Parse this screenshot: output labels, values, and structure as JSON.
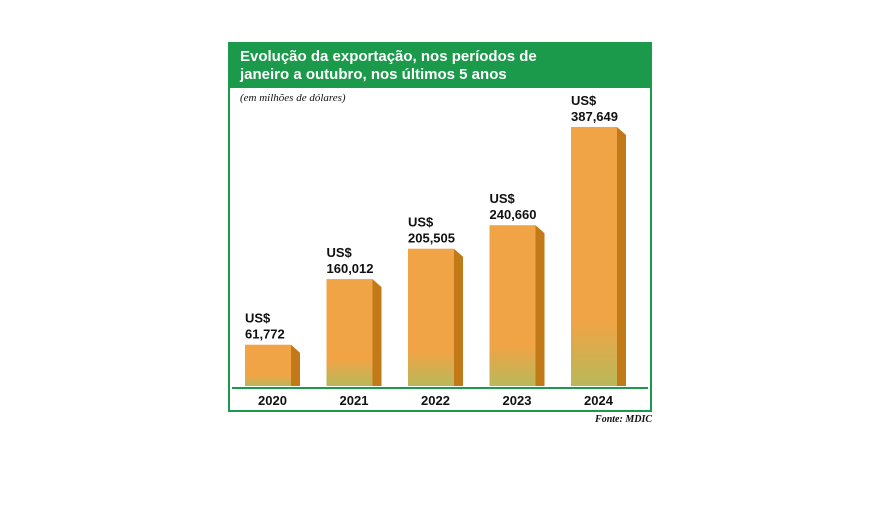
{
  "title": "Evolução da exportação, nos períodos de janeiro a outubro, nos últimos 5 anos",
  "title_line1": "Evolução da exportação, nos períodos de",
  "title_line2": "janeiro a outubro, nos últimos 5 anos",
  "subtitle": "(em milhões de dólares)",
  "source": "Fonte: MDIC",
  "colors": {
    "header": "#1a9a4a",
    "bar_top": "#f0a445",
    "bar_bottom": "#b8b85a",
    "bar_side": "#c27a18",
    "border": "#1a9a4a"
  },
  "chart_data": {
    "type": "bar",
    "title": "Evolução da exportação, nos períodos de janeiro a outubro, nos últimos 5 anos",
    "ylabel": "(em milhões de dólares)",
    "categories": [
      "2020",
      "2021",
      "2022",
      "2023",
      "2024"
    ],
    "values": [
      61.772,
      160.012,
      205.505,
      240.66,
      387.649
    ],
    "value_labels": [
      "US$ 61,772",
      "US$ 160,012",
      "US$ 205,505",
      "US$ 240,660",
      "US$ 387,649"
    ],
    "value_label_prefix": "US$",
    "value_label_numbers": [
      "61,772",
      "160,012",
      "205,505",
      "240,660",
      "387,649"
    ],
    "ylim": [
      0,
      387.649
    ],
    "grid": false,
    "legend": "none"
  }
}
